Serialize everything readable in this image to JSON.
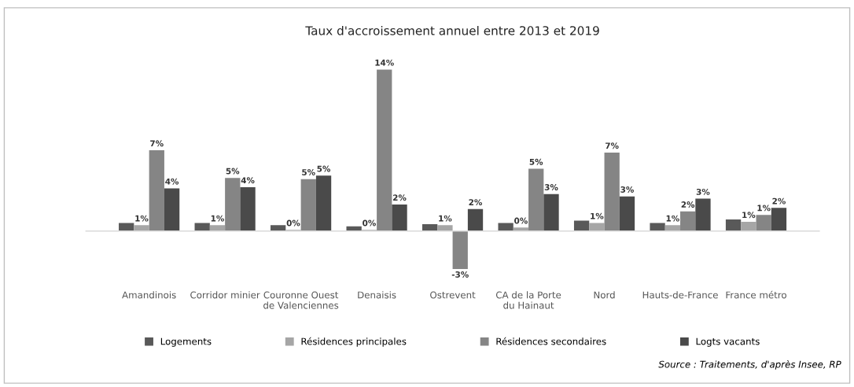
{
  "chart_data": {
    "type": "bar",
    "title": "Taux d'accroissement annuel entre 2013 et 2019",
    "categories": [
      "Amandinois",
      "Corridor minier",
      "Couronne Ouest\nde Valenciennes",
      "Denaisis",
      "Ostrevent",
      "CA de la Porte\ndu Hainaut",
      "Nord",
      "Hauts-de-France",
      "France métro"
    ],
    "series": [
      {
        "name": "Logements",
        "color": "#595959",
        "values": [
          0.7,
          0.7,
          0.5,
          0.4,
          0.6,
          0.7,
          0.9,
          0.7,
          1.0
        ]
      },
      {
        "name": "Résidences principales",
        "color": "#a6a6a6",
        "values": [
          0.5,
          0.5,
          0.1,
          0.1,
          0.5,
          0.3,
          0.7,
          0.5,
          0.8
        ],
        "value_labels": [
          "1%",
          "1%",
          "0%",
          "0%",
          "1%",
          "0%",
          "1%",
          "1%",
          "1%"
        ]
      },
      {
        "name": "Résidences secondaires",
        "color": "#858585",
        "values": [
          7.0,
          4.6,
          4.5,
          14.0,
          -3.3,
          5.4,
          6.8,
          1.7,
          1.4
        ],
        "value_labels": [
          "7%",
          "5%",
          "5%",
          "14%",
          "-3%",
          "5%",
          "7%",
          "2%",
          "1%"
        ]
      },
      {
        "name": "Logts vacants",
        "color": "#4a4a4a",
        "values": [
          3.7,
          3.8,
          4.8,
          2.3,
          1.9,
          3.2,
          3.0,
          2.8,
          2.0
        ],
        "value_labels": [
          "4%",
          "4%",
          "5%",
          "2%",
          "2%",
          "3%",
          "3%",
          "3%",
          "2%"
        ]
      }
    ],
    "legend": "bottom",
    "annotations": [
      "Source : Traitements, d'après Insee, RP"
    ]
  }
}
